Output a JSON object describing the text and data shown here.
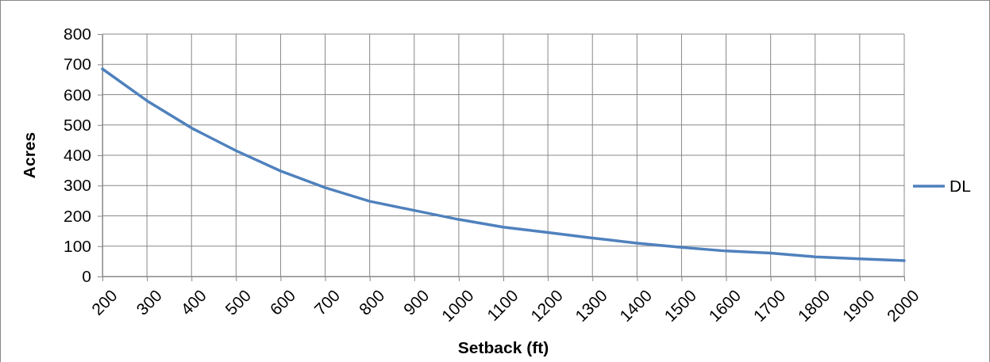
{
  "chart_data": {
    "type": "line",
    "xlabel": "Setback (ft)",
    "ylabel": "Acres",
    "categories": [
      "200",
      "300",
      "400",
      "500",
      "600",
      "700",
      "800",
      "900",
      "1000",
      "1100",
      "1200",
      "1300",
      "1400",
      "1500",
      "1600",
      "1700",
      "1800",
      "1900",
      "2000"
    ],
    "series": [
      {
        "name": "DL",
        "color": "#4f81bd",
        "values": [
          685,
          580,
          490,
          415,
          348,
          293,
          248,
          218,
          188,
          163,
          145,
          127,
          110,
          96,
          84,
          77,
          65,
          58,
          52
        ]
      }
    ],
    "ylim": [
      0,
      800
    ],
    "yticks": [
      0,
      100,
      200,
      300,
      400,
      500,
      600,
      700,
      800
    ],
    "grid": true,
    "legend": "right",
    "marker": "none",
    "line_style": "solid"
  }
}
